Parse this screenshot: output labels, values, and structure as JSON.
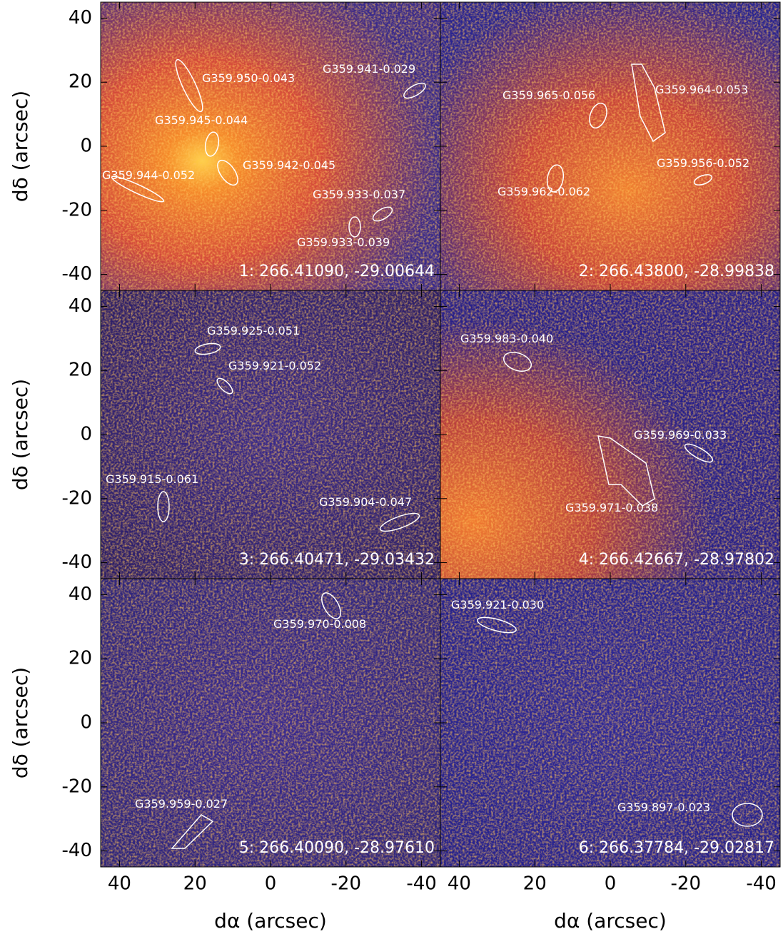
{
  "x_label": "dα (arcsec)",
  "y_label": "dδ (arcsec)",
  "xlim": [
    45,
    -45
  ],
  "ylim": [
    -45,
    45
  ],
  "xticks": [
    40,
    20,
    0,
    -20,
    -40
  ],
  "yticks": [
    -40,
    -20,
    0,
    20,
    40
  ],
  "panels": [
    {
      "title": "1: 266.41090, -29.00644",
      "sources": [
        "G359.950-0.043",
        "G359.941-0.029",
        "G359.945-0.044",
        "G359.942-0.045",
        "G359.944-0.052",
        "G359.933-0.037",
        "G359.933-0.039"
      ]
    },
    {
      "title": "2: 266.43800, -28.99838",
      "sources": [
        "G359.965-0.056",
        "G359.964-0.053",
        "G359.956-0.052",
        "G359.962-0.062"
      ]
    },
    {
      "title": "3: 266.40471, -29.03432",
      "sources": [
        "G359.925-0.051",
        "G359.921-0.052",
        "G359.915-0.061",
        "G359.904-0.047"
      ]
    },
    {
      "title": "4: 266.42667, -28.97802",
      "sources": [
        "G359.983-0.040",
        "G359.969-0.033",
        "G359.971-0.038"
      ]
    },
    {
      "title": "5: 266.40090, -28.97610",
      "sources": [
        "G359.970-0.008",
        "G359.959-0.027"
      ]
    },
    {
      "title": "6: 266.37784, -29.02817",
      "sources": [
        "G359.921-0.030",
        "G359.897-0.023"
      ]
    }
  ]
}
